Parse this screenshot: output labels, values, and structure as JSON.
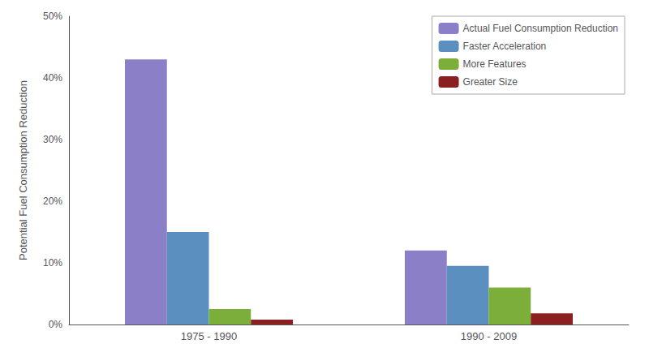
{
  "chart_data": {
    "type": "bar",
    "categories": [
      "1975 - 1990",
      "1990 - 2009"
    ],
    "series": [
      {
        "name": "Actual Fuel Consumption Reduction",
        "color": "#8B7FC8",
        "values": [
          43,
          12
        ]
      },
      {
        "name": "Faster Acceleration",
        "color": "#5B8FC0",
        "values": [
          15,
          9.5
        ]
      },
      {
        "name": "More Features",
        "color": "#7BAF3A",
        "values": [
          2.5,
          6.0
        ]
      },
      {
        "name": "Greater Size",
        "color": "#8B2020",
        "values": [
          0.8,
          1.8
        ]
      }
    ],
    "ylabel": "Potential Fuel Consumption Reduction",
    "ylim": [
      0,
      50
    ],
    "yticks": [
      {
        "value": 0,
        "label": "0%"
      },
      {
        "value": 10,
        "label": "10%"
      },
      {
        "value": 20,
        "label": "20%"
      },
      {
        "value": 30,
        "label": "30%"
      },
      {
        "value": 40,
        "label": "40%"
      },
      {
        "value": 50,
        "label": "50%"
      }
    ],
    "grid": false,
    "legend": "upper right"
  }
}
